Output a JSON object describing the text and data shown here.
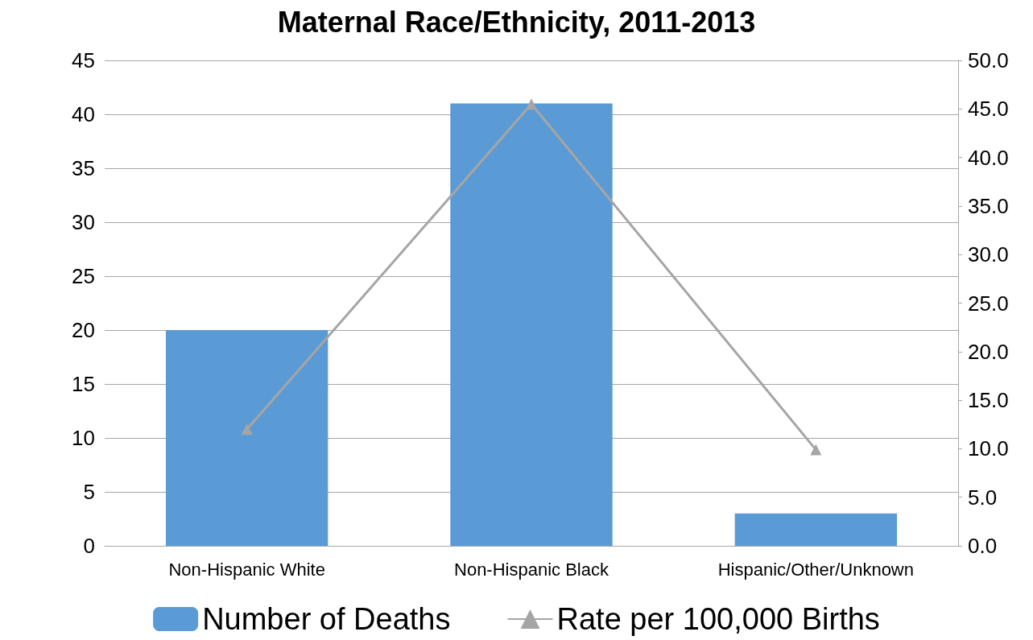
{
  "chart_data": {
    "type": "bar",
    "title": "Maternal Race/Ethnicity, 2011-2013",
    "categories": [
      "Non-Hispanic White",
      "Non-Hispanic Black",
      "Hispanic/Other/Unknown"
    ],
    "series": [
      {
        "name": "Number of Deaths",
        "color": "#5b9bd5",
        "values": [
          20,
          41,
          3
        ]
      },
      {
        "name": "Rate per 100,000 Births",
        "type": "line",
        "axis": "y2",
        "color": "#a5a5a5",
        "marker": "triangle",
        "values": [
          12.0,
          45.5,
          9.9
        ]
      }
    ],
    "ylim": [
      0,
      45
    ],
    "yticks": [
      0,
      5,
      10,
      15,
      20,
      25,
      30,
      35,
      40,
      45
    ],
    "y2lim": [
      0,
      50
    ],
    "y2ticks": [
      {
        "value": 0,
        "label": "0.0"
      },
      {
        "value": 5,
        "label": "5.0"
      },
      {
        "value": 10,
        "label": "10.0"
      },
      {
        "value": 15,
        "label": "15.0"
      },
      {
        "value": 20,
        "label": "20.0"
      },
      {
        "value": 25,
        "label": "25.0"
      },
      {
        "value": 30,
        "label": "30.0"
      },
      {
        "value": 35,
        "label": "35.0"
      },
      {
        "value": 40,
        "label": "40.0"
      },
      {
        "value": 45,
        "label": "45.0"
      },
      {
        "value": 50,
        "label": "50.0"
      }
    ],
    "grid": "y",
    "legend": "bottom"
  }
}
